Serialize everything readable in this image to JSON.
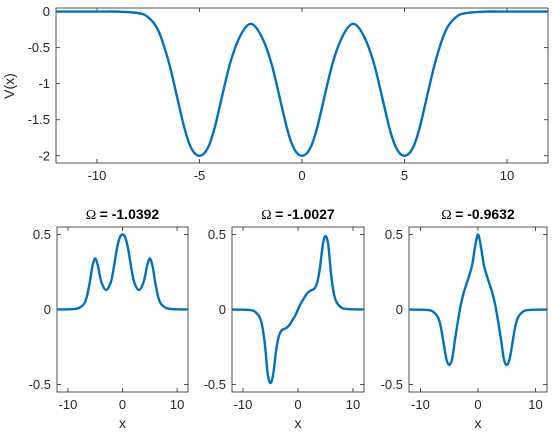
{
  "chart_data": [
    {
      "type": "line",
      "title": "",
      "xlabel": "",
      "ylabel": "V(x)",
      "xlim": [
        -12,
        12
      ],
      "ylim": [
        -2.1,
        0.05
      ],
      "xticks": [
        -10,
        -5,
        0,
        5,
        10
      ],
      "xtick_labels": [
        "-10",
        "-5",
        "0",
        "5",
        "10"
      ],
      "yticks": [
        0,
        -0.5,
        -1,
        -1.5,
        -2
      ],
      "ytick_labels": [
        "0",
        "-0.5",
        "-1",
        "-1.5",
        "-2"
      ],
      "grid": false,
      "color": "#0072BD",
      "series": [
        {
          "x": [
            -12,
            -10,
            -9,
            -8,
            -7.5,
            -7,
            -6.5,
            -6,
            -5.75,
            -5.5,
            -5.25,
            -5,
            -4.75,
            -4.5,
            -4.25,
            -4,
            -3.5,
            -3,
            -2.5,
            -2,
            -1.5,
            -1,
            -0.75,
            -0.5,
            -0.25,
            0,
            0.25,
            0.5,
            0.75,
            1,
            1.5,
            2,
            2.5,
            3,
            3.5,
            4,
            4.25,
            4.5,
            4.75,
            5,
            5.25,
            5.5,
            5.75,
            6,
            6.5,
            7,
            7.5,
            8,
            9,
            10,
            12
          ],
          "y": [
            0,
            0,
            0,
            -0.02,
            -0.08,
            -0.27,
            -0.7,
            -1.3,
            -1.6,
            -1.83,
            -1.96,
            -2.0,
            -1.96,
            -1.83,
            -1.6,
            -1.3,
            -0.71,
            -0.33,
            -0.17,
            -0.33,
            -0.71,
            -1.3,
            -1.6,
            -1.83,
            -1.96,
            -2.0,
            -1.96,
            -1.83,
            -1.6,
            -1.3,
            -0.71,
            -0.33,
            -0.17,
            -0.33,
            -0.71,
            -1.3,
            -1.6,
            -1.83,
            -1.96,
            -2.0,
            -1.96,
            -1.83,
            -1.6,
            -1.3,
            -0.7,
            -0.27,
            -0.08,
            -0.02,
            0,
            0,
            0
          ]
        }
      ]
    },
    {
      "type": "line",
      "title": "= -1.0392",
      "title_symbol": "Ω",
      "xlabel": "x",
      "ylabel": "",
      "xlim": [
        -12,
        12
      ],
      "ylim": [
        -0.55,
        0.55
      ],
      "xticks": [
        -10,
        0,
        10
      ],
      "xtick_labels": [
        "-10",
        "0",
        "10"
      ],
      "yticks": [
        0.5,
        0,
        -0.5
      ],
      "ytick_labels": [
        "0.5",
        "0",
        "-0.5"
      ],
      "grid": false,
      "color": "#0072BD",
      "series": [
        {
          "x": [
            -12,
            -10,
            -9,
            -8,
            -7,
            -6.5,
            -6,
            -5.5,
            -5,
            -4.5,
            -4,
            -3.5,
            -3,
            -2.5,
            -2,
            -1.5,
            -1,
            -0.5,
            0,
            0.5,
            1,
            1.5,
            2,
            2.5,
            3,
            3.5,
            4,
            4.5,
            5,
            5.5,
            6,
            6.5,
            7,
            8,
            9,
            10,
            12
          ],
          "y": [
            0,
            0.001,
            0.003,
            0.01,
            0.04,
            0.09,
            0.18,
            0.29,
            0.34,
            0.29,
            0.2,
            0.15,
            0.13,
            0.15,
            0.2,
            0.3,
            0.41,
            0.48,
            0.5,
            0.48,
            0.41,
            0.3,
            0.2,
            0.15,
            0.13,
            0.15,
            0.2,
            0.29,
            0.34,
            0.29,
            0.18,
            0.09,
            0.04,
            0.01,
            0.003,
            0.001,
            0
          ]
        }
      ]
    },
    {
      "type": "line",
      "title": "= -1.0027",
      "title_symbol": "Ω",
      "xlabel": "x",
      "ylabel": "",
      "xlim": [
        -12,
        12
      ],
      "ylim": [
        -0.55,
        0.55
      ],
      "xticks": [
        -10,
        0,
        10
      ],
      "xtick_labels": [
        "-10",
        "0",
        "10"
      ],
      "yticks": [
        0.5,
        0,
        -0.5
      ],
      "ytick_labels": [
        "0.5",
        "0",
        "-0.5"
      ],
      "grid": false,
      "color": "#0072BD",
      "series": [
        {
          "x": [
            -12,
            -10,
            -9,
            -8,
            -7,
            -6.5,
            -6,
            -5.5,
            -5,
            -4.5,
            -4,
            -3.5,
            -3,
            -2.5,
            -2,
            -1.5,
            -1,
            -0.5,
            0,
            0.5,
            1,
            1.5,
            2,
            2.5,
            3,
            3.5,
            4,
            4.5,
            5,
            5.5,
            6,
            6.5,
            7,
            8,
            9,
            10,
            12
          ],
          "y": [
            0,
            -0.001,
            -0.003,
            -0.01,
            -0.05,
            -0.11,
            -0.24,
            -0.43,
            -0.49,
            -0.43,
            -0.28,
            -0.18,
            -0.14,
            -0.13,
            -0.12,
            -0.1,
            -0.07,
            -0.04,
            0,
            0.04,
            0.07,
            0.1,
            0.12,
            0.13,
            0.14,
            0.18,
            0.28,
            0.43,
            0.49,
            0.43,
            0.24,
            0.11,
            0.05,
            0.01,
            0.003,
            0.001,
            0
          ]
        }
      ]
    },
    {
      "type": "line",
      "title": "= -0.9632",
      "title_symbol": "Ω",
      "xlabel": "x",
      "ylabel": "",
      "xlim": [
        -12,
        12
      ],
      "ylim": [
        -0.55,
        0.55
      ],
      "xticks": [
        -10,
        0,
        10
      ],
      "xtick_labels": [
        "-10",
        "0",
        "10"
      ],
      "yticks": [
        0.5,
        0,
        -0.5
      ],
      "ytick_labels": [
        "0.5",
        "0",
        "-0.5"
      ],
      "grid": false,
      "color": "#0072BD",
      "series": [
        {
          "x": [
            -12,
            -10,
            -9,
            -8,
            -7,
            -6.5,
            -6,
            -5.5,
            -5,
            -4.5,
            -4,
            -3.5,
            -3,
            -2.5,
            -2,
            -1.5,
            -1,
            -0.5,
            0,
            0.5,
            1,
            1.5,
            2,
            2.5,
            3,
            3.5,
            4,
            4.5,
            5,
            5.5,
            6,
            6.5,
            7,
            8,
            9,
            10,
            12
          ],
          "y": [
            0,
            -0.001,
            -0.003,
            -0.01,
            -0.05,
            -0.11,
            -0.22,
            -0.33,
            -0.37,
            -0.33,
            -0.2,
            -0.08,
            0.03,
            0.11,
            0.17,
            0.23,
            0.3,
            0.42,
            0.5,
            0.42,
            0.3,
            0.23,
            0.17,
            0.11,
            0.03,
            -0.08,
            -0.2,
            -0.33,
            -0.37,
            -0.33,
            -0.22,
            -0.11,
            -0.05,
            -0.01,
            -0.003,
            -0.001,
            0
          ]
        }
      ]
    }
  ]
}
